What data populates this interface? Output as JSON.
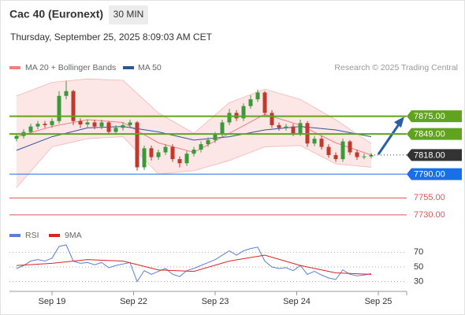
{
  "header": {
    "title": "Cac 40 (Euronext)",
    "interval": "30 MIN",
    "datetime": "Thursday, September 25, 2025 8:09:03 AM CET"
  },
  "chart_data": [
    {
      "type": "candlestick",
      "source": "Research © 2025 Trading Central",
      "xlim": [
        -1,
        55
      ],
      "ylim": [
        7716,
        7936
      ],
      "xticks": [
        {
          "value": 5,
          "label": "Sep 19"
        },
        {
          "value": 16.5,
          "label": "Sep 22"
        },
        {
          "value": 28,
          "label": "Sep 23"
        },
        {
          "value": 39.5,
          "label": "Sep 24"
        },
        {
          "value": 51,
          "label": "Sep 25"
        }
      ],
      "up_color": "#3a9a3a",
      "down_color": "#c0392b",
      "x": [
        0,
        1,
        2,
        3,
        4,
        5,
        6,
        7,
        8,
        9,
        10,
        11,
        12,
        13,
        14,
        15,
        16,
        17,
        18,
        19,
        20,
        21,
        22,
        23,
        24,
        25,
        26,
        27,
        28,
        29,
        30,
        31,
        32,
        33,
        34,
        35,
        36,
        37,
        38,
        39,
        40,
        41,
        42,
        43,
        44,
        45,
        46,
        47,
        48,
        49,
        50
      ],
      "open": [
        7842,
        7846,
        7852,
        7860,
        7864,
        7862,
        7868,
        7905,
        7912,
        7868,
        7863,
        7866,
        7860,
        7866,
        7852,
        7858,
        7862,
        7866,
        7800,
        7828,
        7815,
        7822,
        7830,
        7812,
        7806,
        7820,
        7826,
        7834,
        7840,
        7848,
        7866,
        7880,
        7872,
        7890,
        7900,
        7910,
        7880,
        7862,
        7858,
        7860,
        7850,
        7865,
        7835,
        7842,
        7830,
        7818,
        7812,
        7838,
        7822,
        7815,
        7816
      ],
      "high": [
        7850,
        7856,
        7864,
        7868,
        7868,
        7872,
        7912,
        7927,
        7914,
        7872,
        7870,
        7870,
        7870,
        7868,
        7862,
        7866,
        7870,
        7868,
        7832,
        7832,
        7826,
        7834,
        7834,
        7816,
        7824,
        7830,
        7838,
        7844,
        7852,
        7870,
        7886,
        7884,
        7894,
        7906,
        7914,
        7912,
        7884,
        7866,
        7864,
        7864,
        7870,
        7868,
        7846,
        7846,
        7834,
        7822,
        7842,
        7840,
        7826,
        7820,
        7821
      ],
      "low": [
        7838,
        7842,
        7848,
        7856,
        7858,
        7858,
        7864,
        7900,
        7862,
        7858,
        7859,
        7856,
        7856,
        7848,
        7848,
        7854,
        7858,
        7795,
        7796,
        7810,
        7811,
        7818,
        7808,
        7800,
        7802,
        7816,
        7822,
        7830,
        7836,
        7844,
        7862,
        7868,
        7868,
        7886,
        7896,
        7876,
        7858,
        7854,
        7854,
        7846,
        7846,
        7830,
        7831,
        7826,
        7814,
        7808,
        7808,
        7818,
        7811,
        7812,
        7813
      ],
      "close": [
        7846,
        7852,
        7860,
        7864,
        7862,
        7868,
        7905,
        7912,
        7868,
        7863,
        7866,
        7860,
        7866,
        7852,
        7858,
        7862,
        7866,
        7800,
        7828,
        7815,
        7822,
        7830,
        7812,
        7806,
        7820,
        7826,
        7834,
        7840,
        7848,
        7866,
        7880,
        7872,
        7890,
        7900,
        7910,
        7880,
        7862,
        7858,
        7860,
        7850,
        7865,
        7835,
        7842,
        7830,
        7818,
        7812,
        7838,
        7822,
        7815,
        7816,
        7818
      ],
      "series": [
        {
          "name": "MA 20 + Bollinger Bands",
          "color": "#f08080",
          "band_color": "#fbd5d5",
          "x": [
            0,
            5,
            10,
            15,
            20,
            25,
            30,
            35,
            40,
            45,
            50
          ],
          "values": [
            7845,
            7860,
            7870,
            7866,
            7836,
            7822,
            7850,
            7878,
            7862,
            7836,
            7818
          ],
          "upper": [
            7905,
            7925,
            7930,
            7928,
            7880,
            7850,
            7895,
            7915,
            7900,
            7870,
            7835
          ],
          "lower": [
            7770,
            7830,
            7842,
            7845,
            7790,
            7795,
            7810,
            7830,
            7832,
            7805,
            7800
          ]
        },
        {
          "name": "MA 50",
          "color": "#2b5797",
          "x": [
            0,
            5,
            10,
            15,
            20,
            25,
            30,
            35,
            40,
            45,
            50
          ],
          "values": [
            7825,
            7845,
            7858,
            7860,
            7852,
            7840,
            7845,
            7855,
            7860,
            7855,
            7845
          ]
        }
      ],
      "levels": [
        {
          "value": 7875,
          "label": "7875.00",
          "color": "#5fa31e",
          "style": "box",
          "width": 2
        },
        {
          "value": 7849,
          "label": "7849.00",
          "color": "#5fa31e",
          "style": "box",
          "width": 2
        },
        {
          "value": 7818,
          "label": "7818.00",
          "color": "#333333",
          "style": "current",
          "width": 1
        },
        {
          "value": 7790,
          "label": "7790.00",
          "color": "#1a6ee8",
          "style": "box",
          "width": 1
        },
        {
          "value": 7755,
          "label": "7755.00",
          "color": "#e05555",
          "style": "text",
          "width": 1
        },
        {
          "value": 7730,
          "label": "7730.00",
          "color": "#e05555",
          "style": "text",
          "width": 1
        }
      ]
    },
    {
      "type": "line",
      "xlim": [
        -1,
        55
      ],
      "ylim": [
        20,
        80
      ],
      "yticks": [
        70,
        50,
        30
      ],
      "grid": true,
      "series": [
        {
          "name": "RSI",
          "color": "#5b7fd6",
          "x": [
            0,
            1,
            2,
            3,
            4,
            5,
            6,
            7,
            8,
            9,
            10,
            11,
            12,
            13,
            14,
            15,
            16,
            17,
            18,
            19,
            20,
            21,
            22,
            23,
            24,
            25,
            26,
            27,
            28,
            29,
            30,
            31,
            32,
            33,
            34,
            35,
            36,
            37,
            38,
            39,
            40,
            41,
            42,
            43,
            44,
            45,
            46,
            47,
            48,
            49,
            50
          ],
          "values": [
            48,
            52,
            58,
            60,
            58,
            62,
            78,
            80,
            58,
            55,
            56,
            53,
            56,
            49,
            52,
            54,
            56,
            30,
            45,
            40,
            44,
            48,
            40,
            37,
            45,
            48,
            52,
            56,
            60,
            66,
            72,
            66,
            72,
            75,
            77,
            58,
            50,
            48,
            49,
            45,
            52,
            40,
            44,
            39,
            35,
            33,
            46,
            40,
            38,
            39,
            41
          ]
        },
        {
          "name": "9MA",
          "color": "#dd2222",
          "x": [
            0,
            5,
            10,
            15,
            20,
            25,
            30,
            35,
            40,
            45,
            50
          ],
          "values": [
            52,
            55,
            60,
            58,
            46,
            44,
            58,
            66,
            52,
            42,
            40
          ]
        }
      ]
    }
  ]
}
